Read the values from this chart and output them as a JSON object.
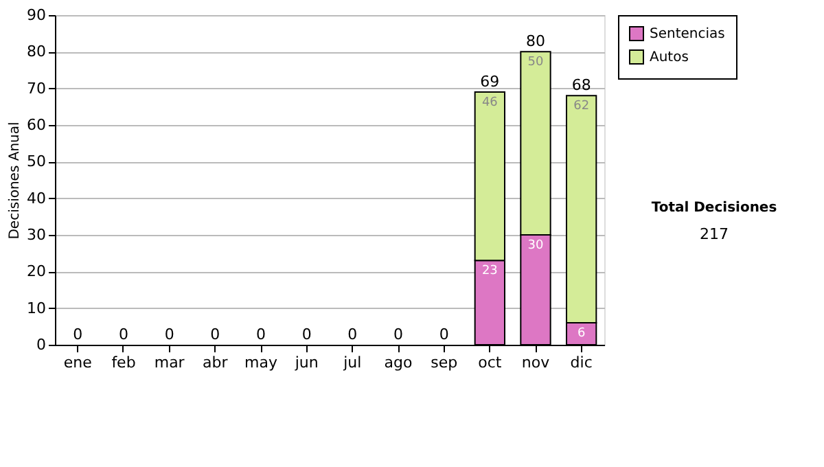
{
  "chart_data": {
    "type": "bar",
    "stacked": true,
    "ylabel": "Decisiones Anual",
    "categories": [
      "ene",
      "feb",
      "mar",
      "abr",
      "may",
      "jun",
      "jul",
      "ago",
      "sep",
      "oct",
      "nov",
      "dic"
    ],
    "series": [
      {
        "name": "Sentencias",
        "color": "#dd77c4",
        "values": [
          0,
          0,
          0,
          0,
          0,
          0,
          0,
          0,
          0,
          23,
          30,
          6
        ],
        "value_labels": [
          null,
          null,
          null,
          null,
          null,
          null,
          null,
          null,
          null,
          "23",
          "30",
          "6"
        ]
      },
      {
        "name": "Autos",
        "color": "#d4ec98",
        "values": [
          0,
          0,
          0,
          0,
          0,
          0,
          0,
          0,
          0,
          46,
          50,
          62
        ],
        "value_labels": [
          null,
          null,
          null,
          null,
          null,
          null,
          null,
          null,
          null,
          "46",
          "50",
          "62"
        ]
      }
    ],
    "totals": [
      "0",
      "0",
      "0",
      "0",
      "0",
      "0",
      "0",
      "0",
      "0",
      "69",
      "80",
      "68"
    ],
    "ylim": [
      0,
      90
    ],
    "yticks": [
      0,
      10,
      20,
      30,
      40,
      50,
      60,
      70,
      80,
      90
    ],
    "grid": "y",
    "legend": "right",
    "annotations": [
      "Total Decisiones",
      "217"
    ]
  }
}
